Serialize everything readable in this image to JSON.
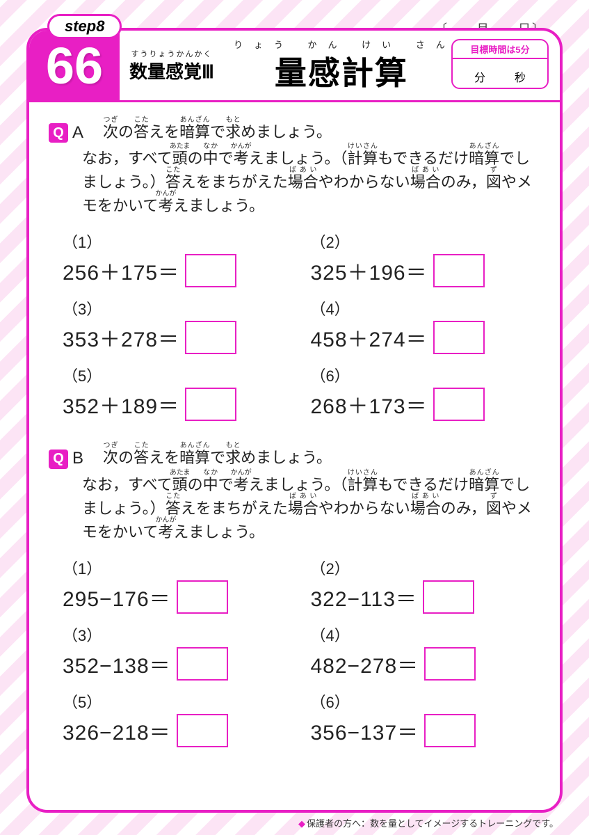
{
  "colors": {
    "accent": "#e81fc4",
    "stripe_light": "#fce4f5",
    "background": "#ffffff"
  },
  "step_label": "step8",
  "date_label": "〔　　月　　日〕",
  "page_number": "66",
  "subtitle": {
    "ruby": "すうりょうかんかく",
    "main": "数量感覚Ⅲ"
  },
  "title": {
    "ruby": "りょう かん けい さん",
    "main": "量感計算"
  },
  "time_box": {
    "target": "目標時間は5分",
    "unit_min": "分",
    "unit_sec": "秒"
  },
  "q_badge": "Q",
  "sections": [
    {
      "letter": "A",
      "instruction_line1": "次の答えを暗算で求めましょう。",
      "instruction_rest": "なお，すべて頭の中で考えましょう。（計算もできるだけ暗算でしましょう。）答えをまちがえた場合やわからない場合のみ，図やメモをかいて考えましょう。",
      "problems": [
        {
          "n": "（1）",
          "expr": "256＋175＝"
        },
        {
          "n": "（2）",
          "expr": "325＋196＝"
        },
        {
          "n": "（3）",
          "expr": "353＋278＝"
        },
        {
          "n": "（4）",
          "expr": "458＋274＝"
        },
        {
          "n": "（5）",
          "expr": "352＋189＝"
        },
        {
          "n": "（6）",
          "expr": "268＋173＝"
        }
      ]
    },
    {
      "letter": "B",
      "instruction_line1": "次の答えを暗算で求めましょう。",
      "instruction_rest": "なお，すべて頭の中で考えましょう。（計算もできるだけ暗算でしましょう。）答えをまちがえた場合やわからない場合のみ，図やメモをかいて考えましょう。",
      "problems": [
        {
          "n": "（1）",
          "expr": "295−176＝"
        },
        {
          "n": "（2）",
          "expr": "322−113＝"
        },
        {
          "n": "（3）",
          "expr": "352−138＝"
        },
        {
          "n": "（4）",
          "expr": "482−278＝"
        },
        {
          "n": "（5）",
          "expr": "326−218＝"
        },
        {
          "n": "（6）",
          "expr": "356−137＝"
        }
      ]
    }
  ],
  "footer_note": "保護者の方へ：数を量としてイメージするトレーニングです。",
  "ruby_map": {
    "次": "つぎ",
    "答": "こた",
    "暗算": "あんざん",
    "求": "もと",
    "頭": "あたま",
    "中": "なか",
    "考": "かんが",
    "計算": "けいさん",
    "場合": "ばあい",
    "図": "ず"
  }
}
